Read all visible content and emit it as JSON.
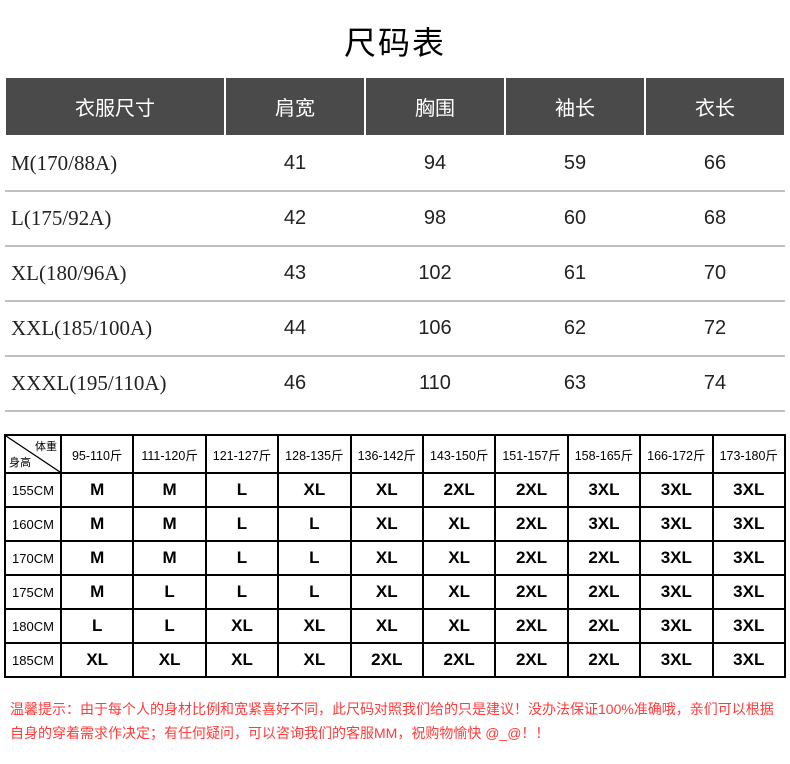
{
  "title": "尺码表",
  "size_table": {
    "headers": [
      "衣服尺寸",
      "肩宽",
      "胸围",
      "袖长",
      "衣长"
    ],
    "rows": [
      [
        "M(170/88A)",
        "41",
        "94",
        "59",
        "66"
      ],
      [
        "L(175/92A)",
        "42",
        "98",
        "60",
        "68"
      ],
      [
        "XL(180/96A)",
        "43",
        "102",
        "61",
        "70"
      ],
      [
        "XXL(185/100A)",
        "44",
        "106",
        "62",
        "72"
      ],
      [
        "XXXL(195/110A)",
        "46",
        "110",
        "63",
        "74"
      ]
    ],
    "header_bg": "#4a4a4a",
    "header_fg": "#ffffff",
    "row_border": "#c0c0c0"
  },
  "rec_table": {
    "corner_top": "体重",
    "corner_left": "身高",
    "weight_headers": [
      "95-110斤",
      "111-120斤",
      "121-127斤",
      "128-135斤",
      "136-142斤",
      "143-150斤",
      "151-157斤",
      "158-165斤",
      "166-172斤",
      "173-180斤"
    ],
    "height_headers": [
      "155CM",
      "160CM",
      "170CM",
      "175CM",
      "180CM",
      "185CM"
    ],
    "grid": [
      [
        "M",
        "M",
        "L",
        "XL",
        "XL",
        "2XL",
        "2XL",
        "3XL",
        "3XL",
        "3XL"
      ],
      [
        "M",
        "M",
        "L",
        "L",
        "XL",
        "XL",
        "2XL",
        "3XL",
        "3XL",
        "3XL"
      ],
      [
        "M",
        "M",
        "L",
        "L",
        "XL",
        "XL",
        "2XL",
        "2XL",
        "3XL",
        "3XL"
      ],
      [
        "M",
        "L",
        "L",
        "L",
        "XL",
        "XL",
        "2XL",
        "2XL",
        "3XL",
        "3XL"
      ],
      [
        "L",
        "L",
        "XL",
        "XL",
        "XL",
        "XL",
        "2XL",
        "2XL",
        "3XL",
        "3XL"
      ],
      [
        "XL",
        "XL",
        "XL",
        "XL",
        "2XL",
        "2XL",
        "2XL",
        "2XL",
        "3XL",
        "3XL"
      ]
    ]
  },
  "note": "温馨提示：由于每个人的身材比例和宽紧喜好不同，此尺码对照我们给的只是建议！没办法保证100%准确哦，亲们可以根据自身的穿着需求作决定；有任何疑问，可以咨询我们的客服MM，祝购物愉快 @_@！！"
}
